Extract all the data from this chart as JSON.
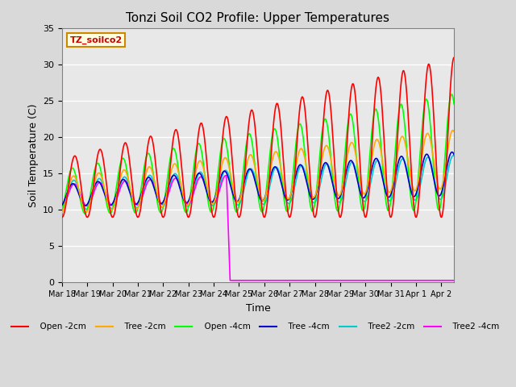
{
  "title": "Tonzi Soil CO2 Profile: Upper Temperatures",
  "xlabel": "Time",
  "ylabel": "Soil Temperature (C)",
  "ylim": [
    0,
    35
  ],
  "xlim_days": [
    0,
    15.5
  ],
  "legend_label": "TZ_soilco2",
  "series_colors": {
    "Open -2cm": "#ff0000",
    "Tree -2cm": "#ffaa00",
    "Open -4cm": "#00ff00",
    "Tree -4cm": "#0000cc",
    "Tree2 -2cm": "#00cccc",
    "Tree2 -4cm": "#ff00ff"
  },
  "legend_order": [
    "Open -2cm",
    "Tree -2cm",
    "Open -4cm",
    "Tree -4cm",
    "Tree2 -2cm",
    "Tree2 -4cm"
  ],
  "x_tick_labels": [
    "Mar 18",
    "Mar 19",
    "Mar 20",
    "Mar 21",
    "Mar 22",
    "Mar 23",
    "Mar 24",
    "Mar 25",
    "Mar 26",
    "Mar 27",
    "Mar 28",
    "Mar 29",
    "Mar 30",
    "Mar 31",
    "Apr 1",
    "Apr 2"
  ],
  "magenta_drop_day": 6.5
}
